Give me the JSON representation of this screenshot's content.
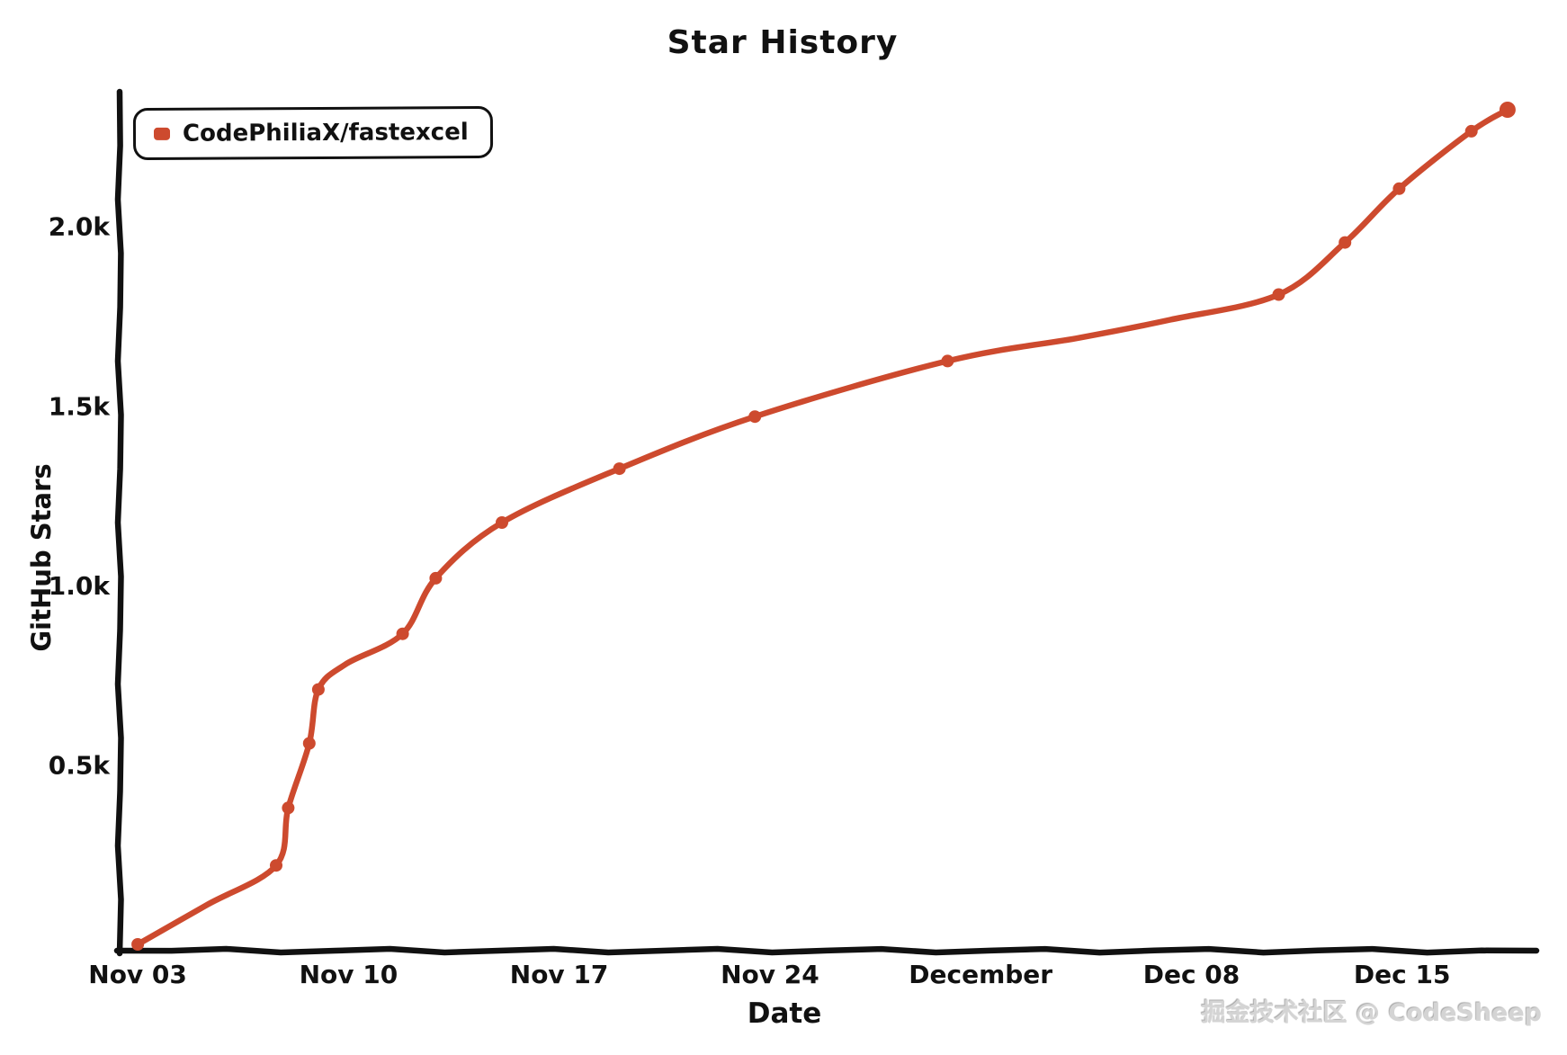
{
  "page": {
    "title": "Star History",
    "watermark": "掘金技术社区 @ CodeSheep"
  },
  "colors": {
    "series": "#cd4a2e",
    "axis": "#111111",
    "text": "#111111",
    "watermark_text": "#d4d4d4",
    "background": "#ffffff"
  },
  "legend": {
    "items": [
      {
        "label": "CodePhiliaX/fastexcel",
        "color": "#cd4a2e"
      }
    ]
  },
  "chart_data": {
    "type": "line",
    "title": "Star History",
    "xlabel": "Date",
    "ylabel": "GitHub Stars",
    "legend_position": "top-left",
    "grid": false,
    "style": "hand-drawn (xkcd-like)",
    "x_unit": "days since Nov 03",
    "xlim": [
      -0.6,
      46.4
    ],
    "ylim": [
      0,
      2370
    ],
    "x_ticks": [
      {
        "day": 0,
        "label": "Nov 03"
      },
      {
        "day": 7,
        "label": "Nov 10"
      },
      {
        "day": 14,
        "label": "Nov 17"
      },
      {
        "day": 21,
        "label": "Nov 24"
      },
      {
        "day": 28,
        "label": "December"
      },
      {
        "day": 35,
        "label": "Dec 08"
      },
      {
        "day": 42,
        "label": "Dec 15"
      }
    ],
    "y_ticks": [
      {
        "value": 500,
        "label": "0.5k"
      },
      {
        "value": 1000,
        "label": "1.0k"
      },
      {
        "value": 1500,
        "label": "1.5k"
      },
      {
        "value": 2000,
        "label": "2.0k"
      }
    ],
    "series": [
      {
        "name": "CodePhiliaX/fastexcel",
        "color": "#cd4a2e",
        "points": [
          {
            "day": 0,
            "date": "Nov 03",
            "stars": 0,
            "marker": true
          },
          {
            "day": 2.3,
            "stars": 110,
            "marker": false
          },
          {
            "day": 4.6,
            "date": "Nov 08",
            "stars": 220,
            "marker": true
          },
          {
            "day": 5.0,
            "date": "Nov 08",
            "stars": 380,
            "marker": true
          },
          {
            "day": 5.7,
            "date": "Nov 09",
            "stars": 560,
            "marker": true
          },
          {
            "day": 6.0,
            "date": "Nov 09",
            "stars": 710,
            "marker": true
          },
          {
            "day": 6.9,
            "stars": 780,
            "marker": false
          },
          {
            "day": 8.8,
            "date": "Nov 12",
            "stars": 865,
            "marker": true
          },
          {
            "day": 9.9,
            "date": "Nov 13",
            "stars": 1020,
            "marker": true
          },
          {
            "day": 12.1,
            "date": "Nov 15",
            "stars": 1175,
            "marker": true
          },
          {
            "day": 16.0,
            "date": "Nov 19",
            "stars": 1325,
            "marker": true
          },
          {
            "day": 20.5,
            "date": "Nov 24",
            "stars": 1470,
            "marker": true
          },
          {
            "day": 26.9,
            "date": "Nov 30",
            "stars": 1625,
            "marker": true
          },
          {
            "day": 31.3,
            "stars": 1690,
            "marker": false
          },
          {
            "day": 34.3,
            "stars": 1740,
            "marker": false
          },
          {
            "day": 37.9,
            "date": "Dec 11",
            "stars": 1810,
            "marker": true
          },
          {
            "day": 40.1,
            "date": "Dec 13",
            "stars": 1955,
            "marker": true
          },
          {
            "day": 41.9,
            "date": "Dec 15",
            "stars": 2105,
            "marker": true
          },
          {
            "day": 44.3,
            "date": "Dec 17",
            "stars": 2265,
            "marker": true
          },
          {
            "day": 45.5,
            "date": "Dec 18",
            "stars": 2325,
            "marker": true
          }
        ]
      }
    ]
  }
}
